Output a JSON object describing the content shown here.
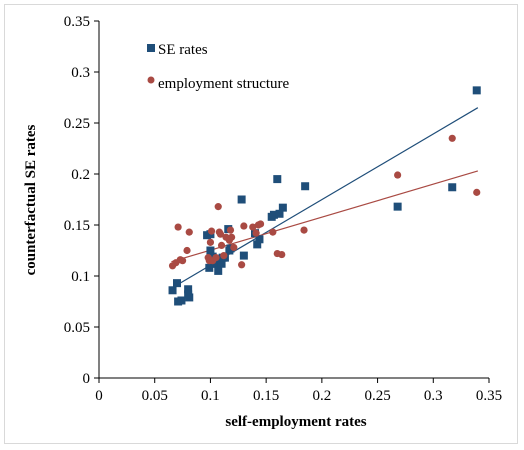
{
  "chart_data": {
    "type": "scatter",
    "xlabel": "self-employment rates",
    "ylabel": "counterfactual SE rates",
    "xlim": [
      0,
      0.35
    ],
    "ylim": [
      0,
      0.35
    ],
    "x_ticks": [
      "0",
      "0.05",
      "0.1",
      "0.15",
      "0.2",
      "0.25",
      "0.3",
      "0.35"
    ],
    "y_ticks": [
      "0",
      "0.05",
      "0.1",
      "0.15",
      "0.2",
      "0.25",
      "0.3",
      "0.35"
    ],
    "grid": false,
    "legend_position": "top-left",
    "series": [
      {
        "name": "SE rates",
        "marker": "square",
        "color": "#1f4e79",
        "trendline": [
          [
            0.065,
            0.088
          ],
          [
            0.34,
            0.265
          ]
        ],
        "points": [
          [
            0.066,
            0.086
          ],
          [
            0.07,
            0.093
          ],
          [
            0.071,
            0.075
          ],
          [
            0.074,
            0.076
          ],
          [
            0.08,
            0.087
          ],
          [
            0.08,
            0.082
          ],
          [
            0.081,
            0.079
          ],
          [
            0.097,
            0.14
          ],
          [
            0.099,
            0.108
          ],
          [
            0.1,
            0.125
          ],
          [
            0.1,
            0.141
          ],
          [
            0.101,
            0.112
          ],
          [
            0.102,
            0.119
          ],
          [
            0.104,
            0.117
          ],
          [
            0.106,
            0.112
          ],
          [
            0.107,
            0.105
          ],
          [
            0.11,
            0.112
          ],
          [
            0.111,
            0.118
          ],
          [
            0.113,
            0.118
          ],
          [
            0.116,
            0.146
          ],
          [
            0.117,
            0.125
          ],
          [
            0.118,
            0.127
          ],
          [
            0.128,
            0.175
          ],
          [
            0.13,
            0.12
          ],
          [
            0.14,
            0.142
          ],
          [
            0.142,
            0.131
          ],
          [
            0.144,
            0.136
          ],
          [
            0.155,
            0.158
          ],
          [
            0.157,
            0.16
          ],
          [
            0.16,
            0.195
          ],
          [
            0.162,
            0.161
          ],
          [
            0.165,
            0.167
          ],
          [
            0.185,
            0.188
          ],
          [
            0.268,
            0.168
          ],
          [
            0.317,
            0.187
          ],
          [
            0.339,
            0.282
          ]
        ]
      },
      {
        "name": "employment structure",
        "marker": "circle",
        "color": "#a94a43",
        "trendline": [
          [
            0.065,
            0.114
          ],
          [
            0.34,
            0.203
          ]
        ],
        "points": [
          [
            0.066,
            0.11
          ],
          [
            0.069,
            0.113
          ],
          [
            0.071,
            0.148
          ],
          [
            0.073,
            0.116
          ],
          [
            0.075,
            0.115
          ],
          [
            0.079,
            0.125
          ],
          [
            0.081,
            0.143
          ],
          [
            0.098,
            0.118
          ],
          [
            0.099,
            0.115
          ],
          [
            0.1,
            0.133
          ],
          [
            0.101,
            0.144
          ],
          [
            0.102,
            0.115
          ],
          [
            0.105,
            0.118
          ],
          [
            0.107,
            0.168
          ],
          [
            0.108,
            0.143
          ],
          [
            0.109,
            0.141
          ],
          [
            0.11,
            0.13
          ],
          [
            0.112,
            0.12
          ],
          [
            0.114,
            0.138
          ],
          [
            0.117,
            0.135
          ],
          [
            0.118,
            0.145
          ],
          [
            0.119,
            0.138
          ],
          [
            0.121,
            0.128
          ],
          [
            0.128,
            0.111
          ],
          [
            0.13,
            0.149
          ],
          [
            0.138,
            0.148
          ],
          [
            0.141,
            0.142
          ],
          [
            0.143,
            0.15
          ],
          [
            0.145,
            0.151
          ],
          [
            0.156,
            0.143
          ],
          [
            0.16,
            0.122
          ],
          [
            0.164,
            0.121
          ],
          [
            0.184,
            0.145
          ],
          [
            0.268,
            0.199
          ],
          [
            0.317,
            0.235
          ],
          [
            0.339,
            0.182
          ]
        ]
      }
    ]
  }
}
